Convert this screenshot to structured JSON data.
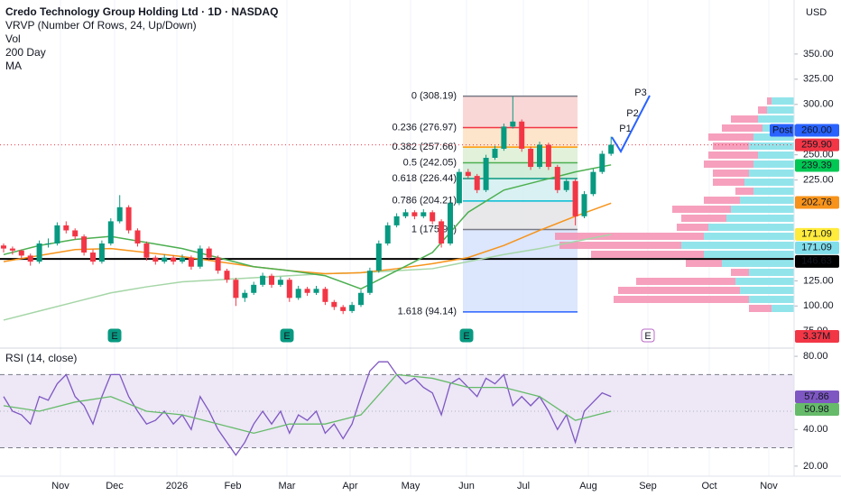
{
  "chart_data": [
    {
      "type": "candlestick",
      "title": "Credo Technology Group Holding Ltd · 1D · NASDAQ",
      "indicators": [
        "VRVP (Number Of Rows, 24, Up/Down)",
        "Vol",
        "200 Day",
        "MA"
      ],
      "currency": "USD",
      "up_color": "#089981",
      "down_color": "#f23645",
      "ylim": [
        60,
        400
      ],
      "yticks": [
        {
          "value": 75,
          "label": "75.00"
        },
        {
          "value": 100,
          "label": "100.00"
        },
        {
          "value": 125,
          "label": "125.00"
        },
        {
          "value": 225,
          "label": "225.00"
        },
        {
          "value": 250,
          "label": "250.00"
        },
        {
          "value": 300,
          "label": "300.00"
        },
        {
          "value": 325,
          "label": "325.00"
        },
        {
          "value": 350,
          "label": "350.00"
        }
      ],
      "x_labels": [
        "Nov",
        "Dec",
        "2026",
        "Feb",
        "Mar",
        "Apr",
        "May",
        "Jun",
        "Jul",
        "Aug",
        "Sep",
        "Oct",
        "Nov"
      ],
      "grid": true,
      "candles": [
        [
          160,
          162,
          153,
          157
        ],
        [
          157,
          159,
          151,
          155
        ],
        [
          155,
          156,
          147,
          150
        ],
        [
          150,
          152,
          140,
          144
        ],
        [
          144,
          165,
          142,
          162
        ],
        [
          162,
          167,
          158,
          162
        ],
        [
          162,
          183,
          160,
          180
        ],
        [
          180,
          184,
          172,
          175
        ],
        [
          175,
          177,
          166,
          169
        ],
        [
          169,
          171,
          150,
          153
        ],
        [
          153,
          156,
          141,
          144
        ],
        [
          144,
          165,
          142,
          162
        ],
        [
          162,
          187,
          160,
          184
        ],
        [
          184,
          210,
          182,
          198
        ],
        [
          198,
          200,
          172,
          175
        ],
        [
          175,
          177,
          159,
          162
        ],
        [
          162,
          164,
          145,
          148
        ],
        [
          148,
          150,
          141,
          144
        ],
        [
          144,
          151,
          142,
          148
        ],
        [
          148,
          150,
          141,
          144
        ],
        [
          144,
          151,
          142,
          148
        ],
        [
          148,
          150,
          136,
          139
        ],
        [
          139,
          160,
          137,
          157
        ],
        [
          157,
          159,
          145,
          148
        ],
        [
          148,
          150,
          132,
          135
        ],
        [
          135,
          137,
          123,
          126
        ],
        [
          126,
          128,
          100,
          108
        ],
        [
          108,
          116,
          104,
          113
        ],
        [
          113,
          124,
          111,
          121
        ],
        [
          121,
          133,
          119,
          130
        ],
        [
          130,
          132,
          118,
          121
        ],
        [
          121,
          129,
          119,
          126
        ],
        [
          126,
          128,
          104,
          108
        ],
        [
          108,
          120,
          106,
          117
        ],
        [
          117,
          119,
          110,
          113
        ],
        [
          113,
          120,
          111,
          117
        ],
        [
          117,
          119,
          101,
          104
        ],
        [
          104,
          106,
          96,
          99
        ],
        [
          99,
          101,
          92,
          95
        ],
        [
          95,
          104,
          93,
          101
        ],
        [
          101,
          116,
          99,
          113
        ],
        [
          113,
          138,
          111,
          135
        ],
        [
          135,
          165,
          133,
          162
        ],
        [
          162,
          183,
          160,
          180
        ],
        [
          180,
          192,
          178,
          189
        ],
        [
          189,
          196,
          187,
          193
        ],
        [
          193,
          195,
          186,
          189
        ],
        [
          189,
          196,
          187,
          193
        ],
        [
          193,
          195,
          181,
          184
        ],
        [
          184,
          186,
          158,
          162
        ],
        [
          162,
          205,
          160,
          202
        ],
        [
          202,
          236,
          200,
          233
        ],
        [
          233,
          236,
          226,
          229
        ],
        [
          229,
          231,
          212,
          215
        ],
        [
          215,
          250,
          213,
          247
        ],
        [
          247,
          259,
          245,
          256
        ],
        [
          256,
          281,
          254,
          278
        ],
        [
          278,
          308,
          276,
          283
        ],
        [
          283,
          285,
          253,
          256
        ],
        [
          256,
          258,
          235,
          238
        ],
        [
          238,
          263,
          236,
          260
        ],
        [
          260,
          262,
          235,
          238
        ],
        [
          238,
          240,
          212,
          215
        ],
        [
          215,
          227,
          213,
          224
        ],
        [
          224,
          226,
          180,
          189
        ],
        [
          189,
          214,
          187,
          211
        ],
        [
          211,
          236,
          209,
          233
        ],
        [
          233,
          254,
          231,
          251
        ],
        [
          251,
          268,
          249,
          260
        ]
      ],
      "series": [
        {
          "color": "#a5d6a7",
          "values": [
            86,
            95,
            104,
            113,
            119,
            124,
            126,
            128,
            130,
            132,
            133,
            135,
            137,
            144,
            151,
            157,
            164,
            171
          ]
        },
        {
          "color": "#f7931a",
          "values": [
            144,
            150,
            156,
            157,
            153,
            149,
            144,
            139,
            135,
            132,
            133,
            137,
            142,
            148,
            160,
            175,
            189,
            202
          ]
        },
        {
          "color": "#4caf50",
          "values": [
            151,
            160,
            166,
            169,
            163,
            157,
            148,
            139,
            135,
            130,
            117,
            135,
            153,
            193,
            215,
            224,
            233,
            240
          ]
        }
      ],
      "price_line": 259.9,
      "support_line": 146.63,
      "price_tags": [
        {
          "value": 260,
          "label": "260.00",
          "color": "#2962ff",
          "text_color": "#ffffff"
        },
        {
          "value": 259.9,
          "label": "259.90",
          "color": "#f23645",
          "text_color": "#ffffff"
        },
        {
          "value": 239.39,
          "label": "239.39",
          "color": "#00c853",
          "text_color": "#000000"
        },
        {
          "value": 202.76,
          "label": "202.76",
          "color": "#f7931a",
          "text_color": "#000000"
        },
        {
          "value": 171.09,
          "label": "171.09",
          "color": "#ffeb3b",
          "text_color": "#000000"
        },
        {
          "value": 171.09,
          "label": "171.09",
          "color": "#80deea",
          "text_color": "#000000"
        },
        {
          "value": 146.63,
          "label": "146.63",
          "color": "#000000",
          "text_color": "#ffffff"
        }
      ],
      "post_label": "Post",
      "volume_tag": {
        "value": 3370000,
        "label": "3.37M"
      },
      "fib_levels": [
        {
          "value": 308.19,
          "label": "0 (308.19)",
          "color": "#787b86",
          "fill": "#f9d0d0"
        },
        {
          "value": 276.97,
          "label": "0.236 (276.97)",
          "color": "#f23645",
          "fill": "#fde0c2"
        },
        {
          "value": 257.66,
          "label": "0.382 (257.66)",
          "color": "#ff9800",
          "fill": "#dcefd4"
        },
        {
          "value": 242.05,
          "label": "0.5 (242.05)",
          "color": "#4caf50",
          "fill": "#cdebd5"
        },
        {
          "value": 226.44,
          "label": "0.618 (226.44)",
          "color": "#089981",
          "fill": "#d2eef0"
        },
        {
          "value": 204.21,
          "label": "0.786 (204.21)",
          "color": "#00bcd4",
          "fill": "#e4e4e6"
        },
        {
          "value": 175.9,
          "label": "1 (175.90)",
          "color": "#787b86",
          "fill": "#d6e2fb"
        },
        {
          "value": 94.14,
          "label": "1.618 (94.14)",
          "color": "#2962ff",
          "fill": null
        }
      ],
      "pattern_labels": [
        "P1",
        "P2",
        "P3"
      ],
      "earnings": [
        "E",
        "E",
        "E",
        "E"
      ],
      "volume_profile": {
        "up_color": "#7fdfe8",
        "down_color": "#f48fb1",
        "up": [
          25,
          30,
          40,
          35,
          45,
          50,
          40,
          45,
          50,
          55,
          45,
          60,
          70,
          75,
          95,
          100,
          125,
          100,
          80,
          50,
          65,
          60,
          50,
          25
        ],
        "down": [
          5,
          10,
          30,
          45,
          50,
          40,
          55,
          55,
          40,
          35,
          20,
          40,
          65,
          50,
          35,
          165,
          135,
          125,
          40,
          20,
          110,
          135,
          150,
          25
        ]
      }
    },
    {
      "type": "line",
      "title": "RSI (14, close)",
      "ylim": [
        15,
        83
      ],
      "yticks": [
        {
          "value": 20,
          "label": "20.00"
        },
        {
          "value": 40,
          "label": "40.00"
        },
        {
          "value": 80,
          "label": "80.00"
        }
      ],
      "bands": [
        30,
        70
      ],
      "band_fill": "#ede7f6",
      "series": [
        {
          "color": "#7e57c2",
          "values": [
            58,
            50,
            48,
            43,
            58,
            56,
            65,
            70,
            58,
            53,
            43,
            58,
            70,
            70,
            58,
            50,
            43,
            45,
            50,
            43,
            48,
            40,
            58,
            50,
            40,
            33,
            26,
            33,
            43,
            50,
            43,
            50,
            38,
            48,
            45,
            50,
            38,
            43,
            35,
            43,
            58,
            72,
            77,
            77,
            70,
            65,
            68,
            63,
            60,
            48,
            65,
            68,
            63,
            58,
            68,
            65,
            70,
            53,
            58,
            53,
            58,
            50,
            40,
            48,
            33,
            50,
            55,
            60,
            58
          ]
        },
        {
          "color": "#66bb6a",
          "values": [
            53,
            50,
            55,
            58,
            50,
            48,
            43,
            38,
            43,
            43,
            48,
            70,
            68,
            63,
            63,
            58,
            45,
            50
          ]
        }
      ],
      "tags": [
        {
          "value": 57.86,
          "label": "57.86",
          "color": "#7e57c2"
        },
        {
          "value": 50.98,
          "label": "50.98",
          "color": "#66bb6a"
        }
      ]
    }
  ]
}
